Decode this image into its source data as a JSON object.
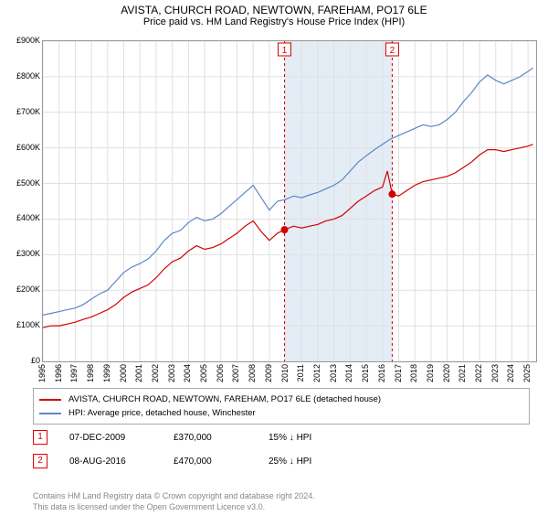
{
  "title_line1": "AVISTA, CHURCH ROAD, NEWTOWN, FAREHAM, PO17 6LE",
  "title_line2": "Price paid vs. HM Land Registry's House Price Index (HPI)",
  "chart": {
    "type": "line",
    "background_color": "#ffffff",
    "grid_color": "#e0e0e0",
    "border_color": "#999999",
    "shaded_band_color": "#e4ecf5",
    "shaded_band_xstart": 2009.94,
    "shaded_band_xend": 2016.6,
    "x_axis": {
      "min": 1995,
      "max": 2025.5,
      "tick_step": 1,
      "tick_fontsize": 9
    },
    "y_axis": {
      "min": 0,
      "max": 900000,
      "tick_step": 100000,
      "tick_prefix": "£",
      "tick_suffix": "K",
      "tick_fontsize": 9
    },
    "series": [
      {
        "name": "AVISTA, CHURCH ROAD, NEWTOWN, FAREHAM, PO17 6LE (detached house)",
        "color": "#d40000",
        "line_width": 1.2,
        "points": [
          [
            1995,
            95000
          ],
          [
            1995.5,
            100000
          ],
          [
            1996,
            100000
          ],
          [
            1996.5,
            105000
          ],
          [
            1997,
            110000
          ],
          [
            1997.5,
            118000
          ],
          [
            1998,
            125000
          ],
          [
            1998.5,
            135000
          ],
          [
            1999,
            145000
          ],
          [
            1999.5,
            160000
          ],
          [
            2000,
            180000
          ],
          [
            2000.5,
            195000
          ],
          [
            2001,
            205000
          ],
          [
            2001.5,
            215000
          ],
          [
            2002,
            235000
          ],
          [
            2002.5,
            260000
          ],
          [
            2003,
            280000
          ],
          [
            2003.5,
            290000
          ],
          [
            2004,
            310000
          ],
          [
            2004.5,
            325000
          ],
          [
            2005,
            315000
          ],
          [
            2005.5,
            320000
          ],
          [
            2006,
            330000
          ],
          [
            2006.5,
            345000
          ],
          [
            2007,
            360000
          ],
          [
            2007.5,
            380000
          ],
          [
            2008,
            395000
          ],
          [
            2008.5,
            365000
          ],
          [
            2009,
            340000
          ],
          [
            2009.5,
            360000
          ],
          [
            2009.94,
            370000
          ],
          [
            2010.5,
            380000
          ],
          [
            2011,
            375000
          ],
          [
            2011.5,
            380000
          ],
          [
            2012,
            385000
          ],
          [
            2012.5,
            395000
          ],
          [
            2013,
            400000
          ],
          [
            2013.5,
            410000
          ],
          [
            2014,
            430000
          ],
          [
            2014.5,
            450000
          ],
          [
            2015,
            465000
          ],
          [
            2015.5,
            480000
          ],
          [
            2016,
            490000
          ],
          [
            2016.3,
            535000
          ],
          [
            2016.6,
            470000
          ],
          [
            2017,
            465000
          ],
          [
            2017.5,
            480000
          ],
          [
            2018,
            495000
          ],
          [
            2018.5,
            505000
          ],
          [
            2019,
            510000
          ],
          [
            2019.5,
            515000
          ],
          [
            2020,
            520000
          ],
          [
            2020.5,
            530000
          ],
          [
            2021,
            545000
          ],
          [
            2021.5,
            560000
          ],
          [
            2022,
            580000
          ],
          [
            2022.5,
            595000
          ],
          [
            2023,
            595000
          ],
          [
            2023.5,
            590000
          ],
          [
            2024,
            595000
          ],
          [
            2024.5,
            600000
          ],
          [
            2025,
            605000
          ],
          [
            2025.3,
            610000
          ]
        ]
      },
      {
        "name": "HPI: Average price, detached house, Winchester",
        "color": "#5b87c7",
        "line_width": 1.2,
        "points": [
          [
            1995,
            130000
          ],
          [
            1995.5,
            135000
          ],
          [
            1996,
            140000
          ],
          [
            1996.5,
            145000
          ],
          [
            1997,
            150000
          ],
          [
            1997.5,
            160000
          ],
          [
            1998,
            175000
          ],
          [
            1998.5,
            190000
          ],
          [
            1999,
            200000
          ],
          [
            1999.5,
            225000
          ],
          [
            2000,
            250000
          ],
          [
            2000.5,
            265000
          ],
          [
            2001,
            275000
          ],
          [
            2001.5,
            288000
          ],
          [
            2002,
            310000
          ],
          [
            2002.5,
            340000
          ],
          [
            2003,
            360000
          ],
          [
            2003.5,
            368000
          ],
          [
            2004,
            390000
          ],
          [
            2004.5,
            405000
          ],
          [
            2005,
            395000
          ],
          [
            2005.5,
            400000
          ],
          [
            2006,
            415000
          ],
          [
            2006.5,
            435000
          ],
          [
            2007,
            455000
          ],
          [
            2007.5,
            475000
          ],
          [
            2008,
            495000
          ],
          [
            2008.5,
            460000
          ],
          [
            2009,
            425000
          ],
          [
            2009.5,
            450000
          ],
          [
            2010,
            455000
          ],
          [
            2010.5,
            465000
          ],
          [
            2011,
            460000
          ],
          [
            2011.5,
            468000
          ],
          [
            2012,
            475000
          ],
          [
            2012.5,
            485000
          ],
          [
            2013,
            495000
          ],
          [
            2013.5,
            510000
          ],
          [
            2014,
            535000
          ],
          [
            2014.5,
            560000
          ],
          [
            2015,
            578000
          ],
          [
            2015.5,
            595000
          ],
          [
            2016,
            610000
          ],
          [
            2016.5,
            625000
          ],
          [
            2017,
            635000
          ],
          [
            2017.5,
            645000
          ],
          [
            2018,
            655000
          ],
          [
            2018.5,
            665000
          ],
          [
            2019,
            660000
          ],
          [
            2019.5,
            665000
          ],
          [
            2020,
            680000
          ],
          [
            2020.5,
            700000
          ],
          [
            2021,
            730000
          ],
          [
            2021.5,
            755000
          ],
          [
            2022,
            785000
          ],
          [
            2022.5,
            805000
          ],
          [
            2023,
            790000
          ],
          [
            2023.5,
            780000
          ],
          [
            2024,
            790000
          ],
          [
            2024.5,
            800000
          ],
          [
            2025,
            815000
          ],
          [
            2025.3,
            825000
          ]
        ]
      }
    ],
    "sale_markers": [
      {
        "label": "1",
        "x": 2009.94,
        "y": 370000,
        "line_color": "#d40000",
        "dot_color": "#d40000"
      },
      {
        "label": "2",
        "x": 2016.6,
        "y": 470000,
        "line_color": "#d40000",
        "dot_color": "#d40000"
      }
    ]
  },
  "legend": {
    "items": [
      {
        "color": "#d40000",
        "label": "AVISTA, CHURCH ROAD, NEWTOWN, FAREHAM, PO17 6LE (detached house)"
      },
      {
        "color": "#5b87c7",
        "label": "HPI: Average price, detached house, Winchester"
      }
    ],
    "border_color": "#aaaaaa",
    "fontsize": 9.5
  },
  "sales_table": [
    {
      "marker": "1",
      "date": "07-DEC-2009",
      "price": "£370,000",
      "delta": "15% ↓ HPI"
    },
    {
      "marker": "2",
      "date": "08-AUG-2016",
      "price": "£470,000",
      "delta": "25% ↓ HPI"
    }
  ],
  "credits_line1": "Contains HM Land Registry data © Crown copyright and database right 2024.",
  "credits_line2": "This data is licensed under the Open Government Licence v3.0.",
  "credits_color": "#888888"
}
